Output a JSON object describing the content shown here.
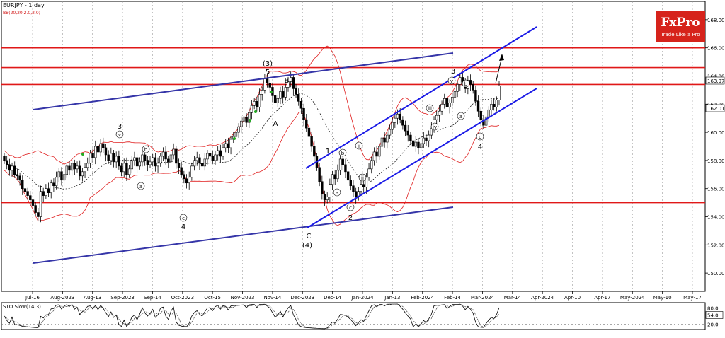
{
  "header": {
    "symbol_label": "EURJPY - 1 day",
    "indicator_label": "BB(20,20,2.0,2.0)"
  },
  "logo": {
    "name": "FxPro",
    "tagline": "Trade Like a Pro",
    "color": "#d6231b"
  },
  "colors": {
    "bullish": "#ffffff",
    "bearish": "#000000",
    "resistance_line": "#e01818",
    "channel_line": "#1a1ae6",
    "trend_line": "#3535a8",
    "bollinger": "#e02020",
    "bollinger_mid": "#000000",
    "green_marker": "#22aa22"
  },
  "chart_data": [
    {
      "type": "candlestick",
      "title": "EURJPY - 1 day",
      "indicator": "BB(20,20,2.0,2.0)",
      "ylim": [
        148.7,
        169.3
      ],
      "y_ticks": [
        "150.000",
        "152.000",
        "154.000",
        "156.000",
        "158.000",
        "160.000",
        "162.000",
        "164.000",
        "166.000",
        "168.000"
      ],
      "x_labels": [
        "Jul-16",
        "Aug-2023",
        "Aug-13",
        "Sep-2023",
        "Sep-14",
        "Oct-2023",
        "Oct-15",
        "Nov-2023",
        "Nov-14",
        "Dec-2023",
        "Dec-14",
        "Jan-2024",
        "Jan-13",
        "Feb-2024",
        "Feb-14",
        "Mar-2024",
        "Mar-14",
        "Apr-2024",
        "Apr-10",
        "Apr-17",
        "May-2024",
        "May-10",
        "May-17"
      ],
      "price_badges": [
        "163.978",
        "162.018"
      ],
      "horizontal_levels": [
        166.0,
        164.6,
        163.4,
        155.0
      ],
      "closes": [
        158.0,
        157.7,
        157.3,
        157.6,
        157.0,
        156.9,
        156.6,
        156.0,
        155.8,
        155.5,
        155.2,
        154.8,
        154.3,
        154.0,
        155.8,
        155.5,
        156.0,
        155.7,
        156.4,
        156.2,
        156.8,
        157.2,
        156.6,
        157.0,
        157.6,
        157.3,
        157.8,
        157.4,
        157.6,
        156.9,
        157.2,
        157.5,
        157.8,
        158.5,
        158.2,
        159.0,
        158.6,
        159.2,
        158.9,
        158.4,
        158.0,
        158.5,
        157.9,
        158.3,
        157.6,
        157.2,
        157.8,
        157.0,
        157.4,
        158.0,
        158.2,
        157.6,
        157.9,
        158.4,
        158.0,
        157.7,
        157.9,
        158.2,
        157.6,
        157.8,
        158.3,
        158.6,
        158.1,
        157.9,
        158.4,
        158.8,
        157.8,
        157.5,
        157.0,
        156.7,
        156.4,
        156.8,
        157.6,
        158.0,
        158.2,
        157.8,
        157.6,
        158.1,
        158.5,
        158.3,
        158.0,
        158.4,
        158.7,
        158.3,
        158.9,
        159.2,
        158.9,
        159.5,
        159.7,
        160.0,
        160.4,
        160.8,
        161.1,
        160.7,
        161.4,
        161.9,
        162.2,
        161.8,
        162.7,
        163.0,
        163.8,
        163.5,
        163.2,
        162.6,
        162.1,
        162.4,
        162.9,
        162.5,
        163.2,
        163.6,
        163.9,
        163.1,
        162.7,
        162.2,
        161.7,
        160.9,
        160.3,
        159.7,
        159.0,
        158.3,
        157.5,
        156.5,
        155.6,
        155.2,
        155.4,
        156.3,
        157.0,
        156.7,
        157.3,
        158.1,
        157.7,
        157.2,
        156.6,
        156.2,
        155.8,
        155.4,
        155.8,
        156.3,
        156.1,
        156.8,
        157.4,
        158.0,
        158.6,
        158.3,
        159.0,
        159.6,
        159.3,
        159.8,
        160.2,
        160.7,
        161.0,
        161.3,
        160.9,
        160.5,
        160.1,
        159.8,
        159.4,
        159.0,
        159.3,
        158.9,
        159.2,
        159.6,
        159.4,
        159.8,
        160.3,
        160.9,
        161.2,
        161.5,
        162.0,
        162.4,
        161.8,
        162.1,
        162.5,
        162.9,
        163.4,
        163.9,
        163.6,
        163.1,
        163.7,
        163.4,
        163.0,
        162.2,
        161.5,
        160.9,
        160.5,
        161.1,
        161.6,
        162.0,
        161.8,
        162.3,
        163.3
      ],
      "wave_labels": [
        "3",
        "v",
        "b",
        "a",
        "c",
        "4",
        "(3)",
        "5",
        "B",
        "A",
        "1",
        "b",
        "a",
        "c",
        "C",
        "(4)",
        "i",
        "ii",
        "2",
        "e",
        "3",
        "v",
        "b",
        "iii",
        "iv",
        "a",
        "c",
        "4"
      ],
      "sub_indicator": {
        "label": "STO Slow(14,3)",
        "levels": [
          80.0,
          20.0
        ],
        "y_ticks": [
          "80.0",
          "20.0"
        ],
        "badge": "54.0"
      }
    }
  ]
}
